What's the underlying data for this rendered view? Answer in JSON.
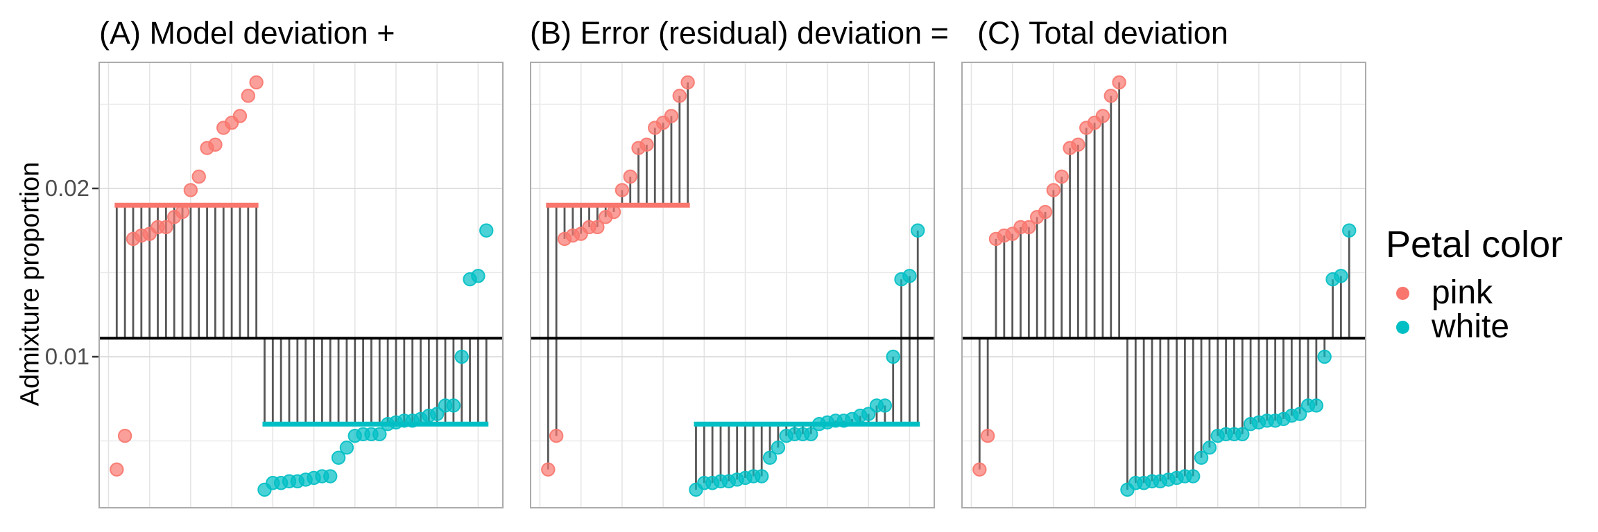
{
  "figure": {
    "y_axis": {
      "label": "Admixture proportion",
      "tick_labels": [
        "0.02",
        "0.01"
      ]
    },
    "panels": [
      {
        "key": "A",
        "title": "(A) Model deviation +"
      },
      {
        "key": "B",
        "title": "(B) Error (residual) deviation ="
      },
      {
        "key": "C",
        "title": "(C) Total deviation"
      }
    ],
    "legend": {
      "title": "Petal color",
      "items": [
        {
          "label": "pink",
          "color": "#F8766D"
        },
        {
          "label": "white",
          "color": "#00BFC4"
        }
      ]
    },
    "colors": {
      "segment_gray": "#575757",
      "overall_mean_line": "#000000",
      "gridline_major": "#DBDBDB",
      "gridline_minor": "#E9E9E9",
      "panel_border": "#ABABAB",
      "axis_text": "#4D4D4D",
      "tick_mark": "#333333"
    }
  },
  "chart_data": {
    "type": "scatter",
    "title": "ANOVA deviation decomposition: Model deviation + Error (residual) deviation = Total deviation",
    "xlabel": "",
    "ylabel": "Admixture proportion",
    "ylim": [
      0.001,
      0.0275
    ],
    "yticks": [
      0.01,
      0.02
    ],
    "y_minor_gridlines": [
      0.005,
      0.015,
      0.025
    ],
    "grid": true,
    "legend_position": "right",
    "x_description": "observations ranked by admixture proportion within petal-color group; pink = ranks 1-18, white = ranks 19-46",
    "n_total": 46,
    "overall_mean": 0.0111,
    "series": [
      {
        "name": "pink",
        "n": 18,
        "group_mean": 0.019,
        "values": [
          0.0033,
          0.0053,
          0.017,
          0.0172,
          0.0173,
          0.0177,
          0.0177,
          0.0183,
          0.0186,
          0.0199,
          0.0207,
          0.0224,
          0.0226,
          0.0236,
          0.0239,
          0.0243,
          0.0255,
          0.0263
        ]
      },
      {
        "name": "white",
        "n": 28,
        "group_mean": 0.006,
        "values": [
          0.0021,
          0.0025,
          0.0025,
          0.0026,
          0.0026,
          0.0027,
          0.0028,
          0.0029,
          0.0029,
          0.004,
          0.0046,
          0.0053,
          0.0054,
          0.0054,
          0.0054,
          0.006,
          0.0061,
          0.0062,
          0.0062,
          0.0063,
          0.0065,
          0.0066,
          0.0071,
          0.0071,
          0.01,
          0.0146,
          0.0148,
          0.0175
        ]
      }
    ],
    "panels": [
      {
        "label": "(A) Model deviation +",
        "segments": "overall_mean_to_group_mean_at_each_observation"
      },
      {
        "label": "(B) Error (residual) deviation =",
        "segments": "group_mean_to_each_point"
      },
      {
        "label": "(C) Total deviation",
        "segments": "overall_mean_to_each_point"
      }
    ]
  }
}
